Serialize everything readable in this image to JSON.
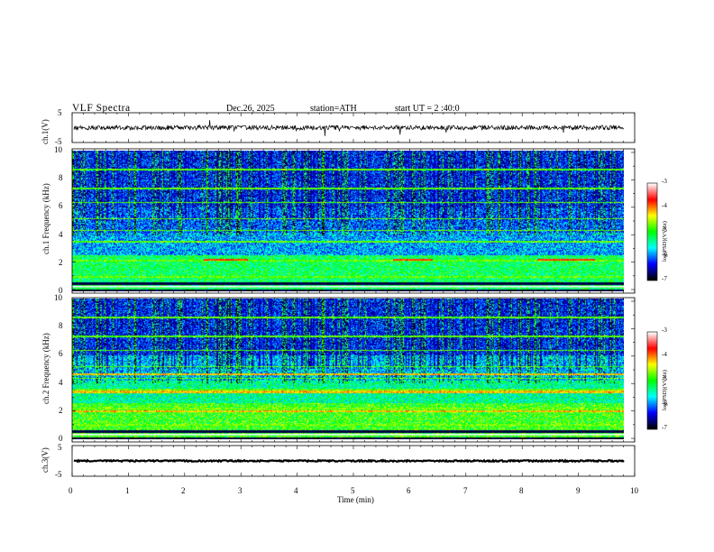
{
  "header": {
    "title": "VLF  Spectra",
    "date": "Dec.26, 2025",
    "station": "station=ATH",
    "start": "start  UT  =   2  :40:0"
  },
  "colorbar": {
    "label": "log(PSD)(V²/Hz)",
    "ticks": [
      "-3",
      "-4",
      "-5",
      "-6",
      "-7"
    ]
  },
  "chart_data": [
    {
      "id": "ch1-waveform",
      "type": "line",
      "ylabel": "ch.1(V)",
      "ylim": [
        -5,
        5
      ],
      "ytick_labels": [
        "5",
        "-5"
      ],
      "xlim": [
        0,
        10
      ]
    },
    {
      "id": "ch1-spectrogram",
      "type": "heatmap",
      "ylabel": "ch.1 Frequency (kHz)",
      "ylim": [
        0,
        10
      ],
      "ytick_labels": [
        "0",
        "2",
        "4",
        "6",
        "8",
        "10"
      ],
      "xlim": [
        0,
        10
      ],
      "zlim": [
        -7,
        -3
      ],
      "colormap": [
        "#000000",
        "#0000ff",
        "#00ffff",
        "#00ff00",
        "#ffff00",
        "#ff0000",
        "#ffffff"
      ]
    },
    {
      "id": "ch2-spectrogram",
      "type": "heatmap",
      "ylabel": "ch.2 Frequency (kHz)",
      "ylim": [
        0,
        10
      ],
      "ytick_labels": [
        "0",
        "2",
        "4",
        "6",
        "8",
        "10"
      ],
      "xlim": [
        0,
        10
      ],
      "zlim": [
        -7,
        -3
      ],
      "colormap": [
        "#000000",
        "#0000ff",
        "#00ffff",
        "#00ff00",
        "#ffff00",
        "#ff0000",
        "#ffffff"
      ]
    },
    {
      "id": "ch3-waveform",
      "type": "line",
      "ylabel": "ch.3(V)",
      "ylim": [
        -5,
        5
      ],
      "ytick_labels": [
        "5",
        "-5"
      ],
      "xlim": [
        0,
        10
      ]
    },
    {
      "id": "time-axis",
      "type": "axis",
      "xlabel": "Time  (min)",
      "xlim": [
        0,
        10
      ],
      "xtick_labels": [
        "0",
        "1",
        "2",
        "3",
        "4",
        "5",
        "6",
        "7",
        "8",
        "9",
        "10"
      ]
    }
  ]
}
